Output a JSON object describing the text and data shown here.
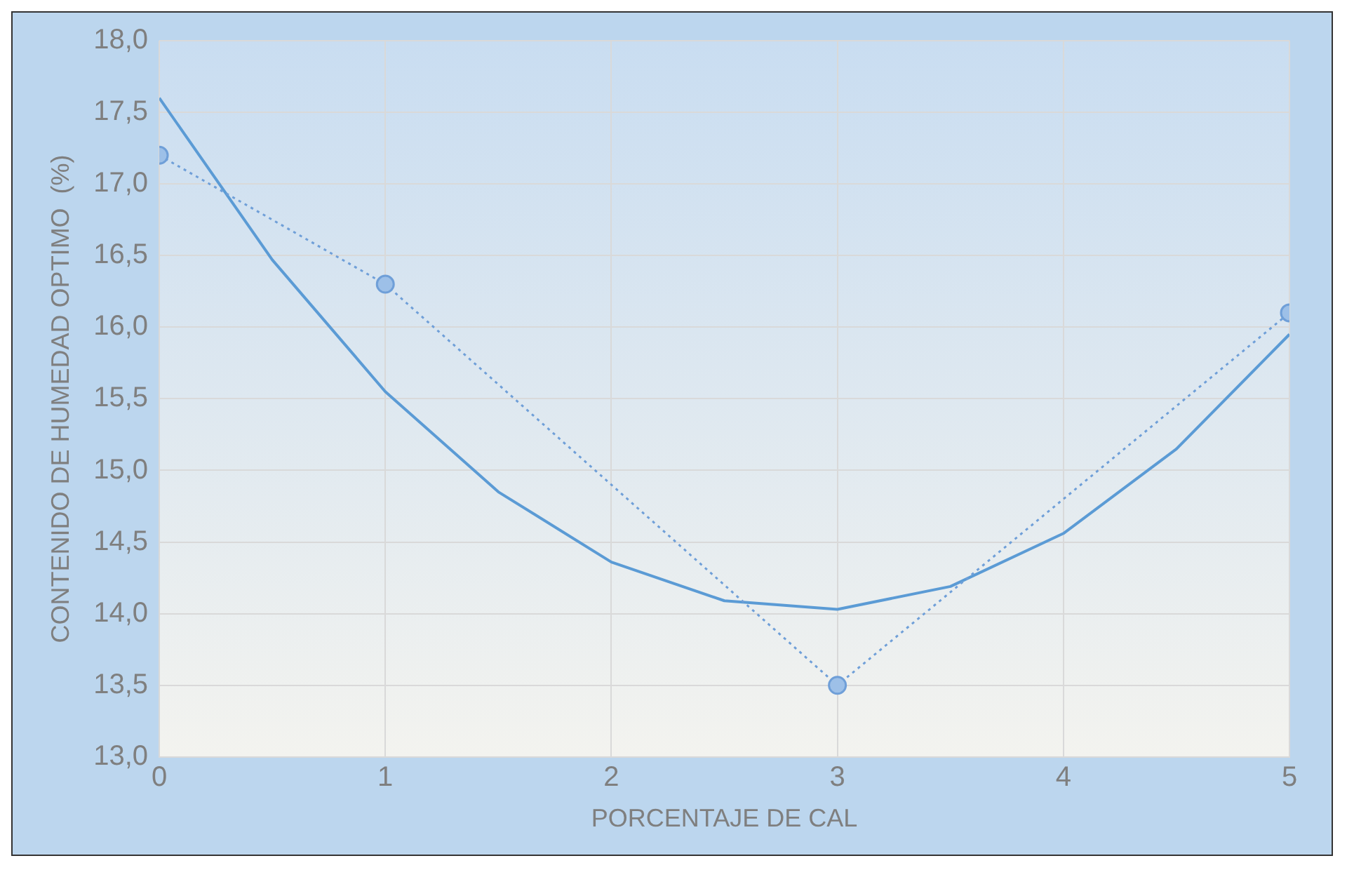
{
  "chart_data": {
    "type": "line",
    "xlabel": "PORCENTAJE DE CAL",
    "ylabel": "CONTENIDO DE HUMEDAD OPTIMO  (%)",
    "x": [
      0,
      1,
      3,
      5
    ],
    "series": [
      {
        "color": "#6f9fd8",
        "values": [
          17.2,
          16.3,
          13.5,
          16.1
        ],
        "marker": "circle",
        "line_style": "dotted"
      },
      {
        "type": "line",
        "color": "#5b9bd5",
        "x": [
          0,
          0.5,
          1,
          1.5,
          2,
          2.5,
          3,
          3.5,
          4,
          4.5,
          5
        ],
        "values": [
          17.6,
          16.47,
          15.55,
          14.85,
          14.36,
          14.09,
          14.03,
          14.19,
          14.56,
          15.15,
          15.95
        ],
        "marker": "none",
        "line_style": "solid"
      }
    ],
    "xlim": [
      0,
      5
    ],
    "xticks": [
      0,
      1,
      2,
      3,
      4,
      5
    ],
    "ylim": [
      13,
      18
    ],
    "yticks": [
      {
        "value": 13,
        "label": "13,0"
      },
      {
        "value": 13.5,
        "label": "13,5"
      },
      {
        "value": 14,
        "label": "14,0"
      },
      {
        "value": 14.5,
        "label": "14,5"
      },
      {
        "value": 15,
        "label": "15,0"
      },
      {
        "value": 15.5,
        "label": "15,5"
      },
      {
        "value": 16,
        "label": "16,0"
      },
      {
        "value": 16.5,
        "label": "16,5"
      },
      {
        "value": 17,
        "label": "17,0"
      },
      {
        "value": 17.5,
        "label": "17,5"
      },
      {
        "value": 18,
        "label": "18,0"
      }
    ],
    "grid": true,
    "legend": false
  }
}
